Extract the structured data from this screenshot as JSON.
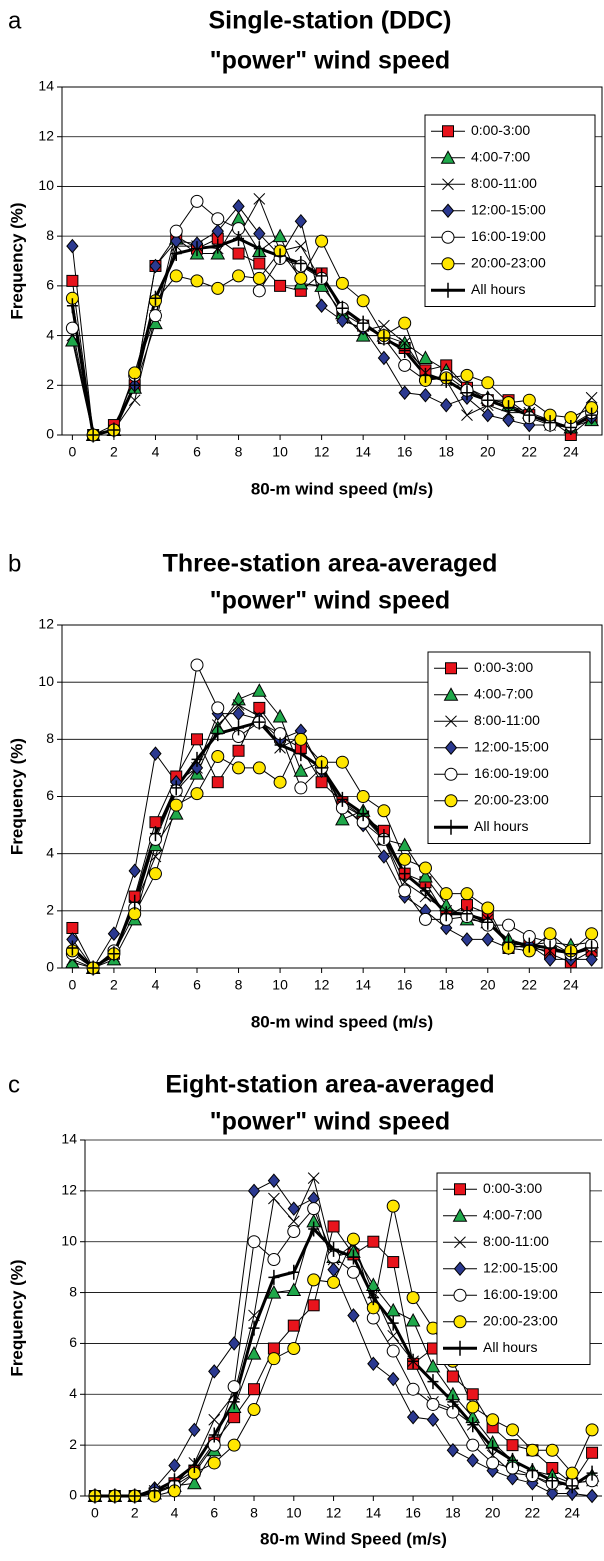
{
  "chart_data": [
    {
      "type": "line",
      "panel_label": "a",
      "title_lines": [
        "Single-station (DDC)",
        "\"power\" wind speed"
      ],
      "xlabel": "80-m wind speed (m/s)",
      "ylabel": "Frequency (%)",
      "x": [
        0,
        1,
        2,
        3,
        4,
        5,
        6,
        7,
        8,
        9,
        10,
        11,
        12,
        13,
        14,
        15,
        16,
        17,
        18,
        19,
        20,
        21,
        22,
        23,
        24,
        25
      ],
      "xlim": [
        -0.5,
        25.5
      ],
      "xticks": [
        0,
        2,
        4,
        6,
        8,
        10,
        12,
        14,
        16,
        18,
        20,
        22,
        24
      ],
      "ylim": [
        0,
        14
      ],
      "yticks": [
        0,
        2,
        4,
        6,
        8,
        10,
        12,
        14
      ],
      "grid": true,
      "legend": "upper right",
      "series": [
        {
          "name": "0:00-3:00",
          "color": "#e8141c",
          "marker": "square",
          "linewidth": 1,
          "values": [
            6.2,
            0,
            0.4,
            2.0,
            6.8,
            8.0,
            7.5,
            7.9,
            7.3,
            6.9,
            6.0,
            5.8,
            6.5,
            4.9,
            4.4,
            3.9,
            3.5,
            2.6,
            2.8,
            1.9,
            1.4,
            1.4,
            0.8,
            0.6,
            0,
            0.7
          ]
        },
        {
          "name": "4:00-7:00",
          "color": "#1fa84a",
          "marker": "triangle",
          "linewidth": 1,
          "values": [
            3.8,
            0,
            0.2,
            1.9,
            4.5,
            7.9,
            7.3,
            7.3,
            8.7,
            7.4,
            8.0,
            6.1,
            6.0,
            4.9,
            4.0,
            4.0,
            3.7,
            3.1,
            2.6,
            1.9,
            1.5,
            1.2,
            0.9,
            0.6,
            0.3,
            0.6
          ]
        },
        {
          "name": "8:00-11:00",
          "color": "#000000",
          "marker": "x",
          "linewidth": 1,
          "values": [
            4.0,
            0,
            0.2,
            1.4,
            4.8,
            7.6,
            7.6,
            7.5,
            8.0,
            9.5,
            7.4,
            7.6,
            6.2,
            4.7,
            4.2,
            4.4,
            3.7,
            2.5,
            2.2,
            0.8,
            1.2,
            0.9,
            0.9,
            0.4,
            0.3,
            1.5
          ]
        },
        {
          "name": "12:00-15:00",
          "color": "#2b3990",
          "marker": "diamond",
          "linewidth": 1,
          "values": [
            7.6,
            0,
            0.2,
            2.0,
            6.8,
            7.8,
            7.7,
            8.2,
            9.2,
            8.1,
            7.2,
            8.6,
            5.2,
            4.6,
            4.3,
            3.1,
            1.7,
            1.6,
            1.2,
            1.5,
            0.8,
            0.6,
            0.4,
            0.4,
            0.3,
            0.7
          ]
        },
        {
          "name": "16:00-19:00",
          "color": "#ffffff",
          "marker": "circle",
          "linewidth": 1,
          "values": [
            4.3,
            0,
            0.2,
            2.4,
            4.8,
            8.2,
            9.4,
            8.7,
            8.3,
            5.8,
            7.1,
            6.8,
            6.3,
            5.1,
            4.4,
            3.9,
            2.8,
            2.2,
            2.4,
            1.8,
            1.4,
            1.3,
            0.7,
            0.4,
            0.4,
            0.9
          ]
        },
        {
          "name": "20:00-23:00",
          "color": "#ffe600",
          "marker": "circle",
          "linewidth": 1,
          "values": [
            5.5,
            0,
            0.2,
            2.5,
            5.4,
            6.4,
            6.2,
            5.9,
            6.4,
            6.3,
            7.4,
            6.3,
            7.8,
            6.1,
            5.4,
            4.0,
            4.5,
            2.2,
            2.3,
            2.4,
            2.1,
            1.3,
            1.4,
            0.8,
            0.7,
            1.1
          ]
        },
        {
          "name": "All hours",
          "color": "#000000",
          "marker": "plus",
          "linewidth": 3,
          "values": [
            5.2,
            0,
            0.2,
            2.0,
            5.5,
            7.3,
            7.5,
            7.6,
            7.9,
            7.5,
            7.2,
            6.9,
            6.4,
            5.1,
            4.5,
            3.9,
            3.4,
            2.4,
            2.2,
            1.7,
            1.4,
            1.1,
            0.8,
            0.5,
            0.3,
            0.8
          ]
        }
      ]
    },
    {
      "type": "line",
      "panel_label": "b",
      "title_lines": [
        "Three-station area-averaged",
        "\"power\" wind speed"
      ],
      "xlabel": "80-m wind speed (m/s)",
      "ylabel": "Frequency (%)",
      "x": [
        0,
        1,
        2,
        3,
        4,
        5,
        6,
        7,
        8,
        9,
        10,
        11,
        12,
        13,
        14,
        15,
        16,
        17,
        18,
        19,
        20,
        21,
        22,
        23,
        24,
        25
      ],
      "xlim": [
        -0.5,
        25.5
      ],
      "xticks": [
        0,
        2,
        4,
        6,
        8,
        10,
        12,
        14,
        16,
        18,
        20,
        22,
        24
      ],
      "ylim": [
        0,
        12
      ],
      "yticks": [
        0,
        2,
        4,
        6,
        8,
        10,
        12
      ],
      "grid": true,
      "legend": "upper right",
      "series": [
        {
          "name": "0:00-3:00",
          "color": "#e8141c",
          "marker": "square",
          "linewidth": 1,
          "values": [
            1.4,
            0,
            0.5,
            2.5,
            5.1,
            6.7,
            8.0,
            6.5,
            7.6,
            9.1,
            8.1,
            7.7,
            6.5,
            5.8,
            5.3,
            4.8,
            3.3,
            3.0,
            1.8,
            2.2,
            1.9,
            0.7,
            0.8,
            0.5,
            0.2,
            0.6
          ]
        },
        {
          "name": "4:00-7:00",
          "color": "#1fa84a",
          "marker": "triangle",
          "linewidth": 1,
          "values": [
            0.2,
            0,
            0.3,
            1.7,
            4.3,
            5.4,
            6.8,
            8.4,
            9.4,
            9.7,
            8.8,
            6.9,
            7.2,
            5.2,
            5.5,
            4.5,
            4.3,
            3.2,
            2.2,
            1.7,
            1.6,
            1.0,
            0.8,
            0.9,
            0.8,
            0.9
          ]
        },
        {
          "name": "8:00-11:00",
          "color": "#000000",
          "marker": "x",
          "linewidth": 1,
          "values": [
            0.3,
            0,
            0.4,
            2.2,
            3.9,
            6.2,
            7.0,
            8.5,
            9.2,
            8.8,
            7.7,
            8.1,
            7.0,
            5.7,
            5.3,
            4.5,
            3.0,
            2.5,
            2.0,
            1.9,
            1.7,
            0.8,
            0.7,
            0.6,
            0.5,
            0.7
          ]
        },
        {
          "name": "12:00-15:00",
          "color": "#2b3990",
          "marker": "diamond",
          "linewidth": 1,
          "values": [
            1.0,
            0,
            1.2,
            3.4,
            7.5,
            6.5,
            7.0,
            8.9,
            8.9,
            8.7,
            8.0,
            8.3,
            6.9,
            5.7,
            5.0,
            3.9,
            2.5,
            2.0,
            1.4,
            1.0,
            1.0,
            0.7,
            0.8,
            0.3,
            0.3,
            0.3
          ]
        },
        {
          "name": "16:00-19:00",
          "color": "#ffffff",
          "marker": "circle",
          "linewidth": 1,
          "values": [
            0.5,
            0,
            0.6,
            2.1,
            4.5,
            6.2,
            10.6,
            9.1,
            8.1,
            8.6,
            8.2,
            6.3,
            7.0,
            5.6,
            5.1,
            4.5,
            2.7,
            1.7,
            1.7,
            1.8,
            1.5,
            1.5,
            1.1,
            0.9,
            0.5,
            0.8
          ]
        },
        {
          "name": "20:00-23:00",
          "color": "#ffe600",
          "marker": "circle",
          "linewidth": 1,
          "values": [
            0.6,
            0,
            0.5,
            1.9,
            3.3,
            5.7,
            6.1,
            7.4,
            7.0,
            7.0,
            6.5,
            8.0,
            7.2,
            7.2,
            6.0,
            5.5,
            3.8,
            3.5,
            2.6,
            2.6,
            2.1,
            0.7,
            0.6,
            1.2,
            0.6,
            1.2
          ]
        },
        {
          "name": "All hours",
          "color": "#000000",
          "marker": "plus",
          "linewidth": 3,
          "values": [
            0.7,
            0,
            0.5,
            2.3,
            4.7,
            6.3,
            7.3,
            8.2,
            8.4,
            8.6,
            7.8,
            7.5,
            7.0,
            5.9,
            5.4,
            4.6,
            3.3,
            2.7,
            1.9,
            1.9,
            1.6,
            0.9,
            0.8,
            0.7,
            0.5,
            0.7
          ]
        }
      ]
    },
    {
      "type": "line",
      "panel_label": "c",
      "title_lines": [
        "Eight-station area-averaged",
        "\"power\" wind speed"
      ],
      "xlabel": "80-m Wind Speed (m/s)",
      "ylabel": "Frequency (%)",
      "x": [
        0,
        1,
        2,
        3,
        4,
        5,
        6,
        7,
        8,
        9,
        10,
        11,
        12,
        13,
        14,
        15,
        16,
        17,
        18,
        19,
        20,
        21,
        22,
        23,
        24,
        25
      ],
      "xlim": [
        -0.5,
        25.5
      ],
      "xticks": [
        0,
        2,
        4,
        6,
        8,
        10,
        12,
        14,
        16,
        18,
        20,
        22,
        24
      ],
      "ylim": [
        0,
        14
      ],
      "yticks": [
        0,
        2,
        4,
        6,
        8,
        10,
        12,
        14
      ],
      "grid": true,
      "legend": "upper right",
      "series": [
        {
          "name": "0:00-3:00",
          "color": "#e8141c",
          "marker": "square",
          "linewidth": 1,
          "values": [
            0,
            0,
            0,
            0.1,
            0.5,
            1.0,
            2.1,
            3.1,
            4.2,
            5.8,
            6.7,
            7.5,
            10.6,
            9.5,
            10.0,
            9.2,
            5.2,
            5.8,
            4.7,
            4.0,
            2.7,
            2.0,
            1.8,
            1.1,
            0.5,
            1.7
          ]
        },
        {
          "name": "4:00-7:00",
          "color": "#1fa84a",
          "marker": "triangle",
          "linewidth": 1,
          "values": [
            0,
            0,
            0,
            0.1,
            0.4,
            0.5,
            1.8,
            3.5,
            5.6,
            8.0,
            8.1,
            10.8,
            9.4,
            9.6,
            8.3,
            7.3,
            6.9,
            5.1,
            4.0,
            3.1,
            2.1,
            1.4,
            1.0,
            0.8,
            0.5,
            0.8
          ]
        },
        {
          "name": "8:00-11:00",
          "color": "#000000",
          "marker": "x",
          "linewidth": 1,
          "values": [
            0,
            0,
            0,
            0.2,
            0.4,
            1.3,
            3.0,
            4.0,
            7.1,
            11.7,
            10.8,
            12.5,
            9.3,
            9.9,
            8.0,
            6.3,
            5.3,
            3.7,
            3.4,
            2.8,
            1.6,
            0.9,
            0.8,
            0.4,
            0.5,
            0.6
          ]
        },
        {
          "name": "12:00-15:00",
          "color": "#2b3990",
          "marker": "diamond",
          "linewidth": 1,
          "values": [
            0,
            0,
            0,
            0.3,
            1.2,
            2.6,
            4.9,
            6.0,
            12.0,
            12.4,
            11.3,
            11.7,
            8.9,
            7.1,
            5.2,
            4.6,
            3.1,
            3.0,
            1.8,
            1.4,
            1.0,
            0.7,
            0.5,
            0.1,
            0.1,
            0
          ]
        },
        {
          "name": "16:00-19:00",
          "color": "#ffffff",
          "marker": "circle",
          "linewidth": 1,
          "values": [
            0,
            0,
            0,
            0.1,
            0.4,
            0.9,
            2.0,
            4.3,
            10.0,
            9.3,
            10.4,
            11.3,
            9.4,
            8.8,
            7.0,
            5.7,
            4.2,
            3.6,
            3.3,
            2.0,
            1.3,
            1.1,
            0.8,
            0.5,
            0.5,
            0.6
          ]
        },
        {
          "name": "20:00-23:00",
          "color": "#ffe600",
          "marker": "circle",
          "linewidth": 1,
          "values": [
            0,
            0,
            0,
            0,
            0.2,
            0.9,
            1.3,
            2.0,
            3.4,
            5.4,
            5.8,
            8.5,
            8.4,
            10.1,
            7.4,
            11.4,
            7.8,
            6.6,
            5.3,
            3.5,
            3.0,
            2.6,
            1.8,
            1.8,
            0.9,
            2.6
          ]
        },
        {
          "name": "All hours",
          "color": "#000000",
          "marker": "plus",
          "linewidth": 3,
          "values": [
            0,
            0,
            0,
            0.2,
            0.6,
            1.2,
            2.4,
            3.7,
            6.6,
            8.6,
            8.8,
            10.5,
            9.7,
            9.4,
            7.8,
            6.8,
            5.3,
            4.5,
            3.7,
            2.8,
            1.9,
            1.4,
            1.0,
            0.6,
            0.4,
            0.9
          ]
        }
      ]
    }
  ]
}
